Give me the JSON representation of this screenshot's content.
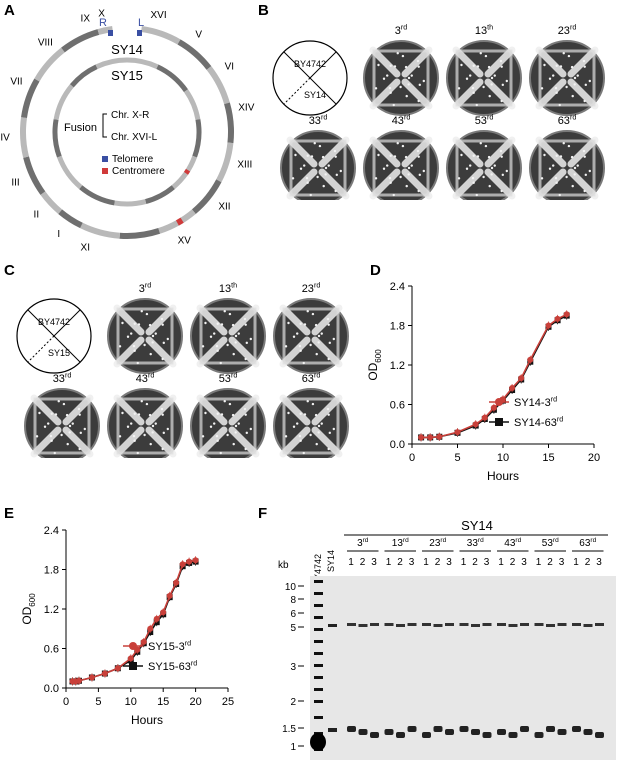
{
  "panels": {
    "A": "A",
    "B": "B",
    "C": "C",
    "D": "D",
    "E": "E",
    "F": "F"
  },
  "panel_a": {
    "outer_label": "SY14",
    "inner_label": "SY15",
    "chromosomes": [
      "X",
      "XVI",
      "V",
      "VI",
      "XIV",
      "XIII",
      "XII",
      "XV",
      "XI",
      "I",
      "II",
      "III",
      "IV",
      "VII",
      "VIII",
      "IX"
    ],
    "telomere_marks": [
      "R",
      "L"
    ],
    "fusion_label": "Fusion",
    "fusion_items": [
      "Chr. X-R",
      "Chr. XVI-L"
    ],
    "legend": [
      {
        "label": "Telomere",
        "color": "#3a4fa3"
      },
      {
        "label": "Centromere",
        "color": "#d03a3a"
      }
    ],
    "colors": {
      "ring_light": "#b9b9b9",
      "ring_dark": "#6f6f6f"
    }
  },
  "panel_b": {
    "strain_top": "BY4742",
    "strain_bottom": "SY14",
    "generations": [
      {
        "num": "3",
        "sup": "rd"
      },
      {
        "num": "13",
        "sup": "th"
      },
      {
        "num": "23",
        "sup": "rd"
      },
      {
        "num": "33",
        "sup": "rd"
      },
      {
        "num": "43",
        "sup": "rd"
      },
      {
        "num": "53",
        "sup": "rd"
      },
      {
        "num": "63",
        "sup": "rd"
      }
    ]
  },
  "panel_c": {
    "strain_top": "BY4742",
    "strain_bottom": "SY15",
    "generations": [
      {
        "num": "3",
        "sup": "rd"
      },
      {
        "num": "13",
        "sup": "th"
      },
      {
        "num": "23",
        "sup": "rd"
      },
      {
        "num": "33",
        "sup": "rd"
      },
      {
        "num": "43",
        "sup": "rd"
      },
      {
        "num": "53",
        "sup": "rd"
      },
      {
        "num": "63",
        "sup": "rd"
      }
    ]
  },
  "chart_data": [
    {
      "type": "line",
      "panel": "D",
      "xlabel": "Hours",
      "ylabel_main": "OD",
      "ylabel_sub": "600",
      "xlim": [
        0,
        20
      ],
      "ylim": [
        0,
        2.4
      ],
      "xticks": [
        "0",
        "5",
        "10",
        "15",
        "20"
      ],
      "yticks": [
        "0.0",
        "0.6",
        "1.2",
        "1.8",
        "2.4"
      ],
      "x": [
        1,
        2,
        3,
        5,
        7,
        8,
        9,
        10,
        11,
        12,
        13,
        15,
        16,
        17
      ],
      "series": [
        {
          "name": "SY14-3",
          "name_sup": "rd",
          "color": "#c9403a",
          "marker": "circle",
          "values": [
            0.1,
            0.1,
            0.11,
            0.18,
            0.3,
            0.4,
            0.55,
            0.68,
            0.85,
            1.0,
            1.28,
            1.8,
            1.9,
            1.97
          ]
        },
        {
          "name": "SY14-63",
          "name_sup": "rd",
          "color": "#111111",
          "marker": "square",
          "values": [
            0.1,
            0.1,
            0.11,
            0.17,
            0.28,
            0.38,
            0.52,
            0.66,
            0.82,
            0.98,
            1.25,
            1.78,
            1.88,
            1.95
          ]
        }
      ],
      "legend_position": "bottom-right"
    },
    {
      "type": "line",
      "panel": "E",
      "xlabel": "Hours",
      "ylabel_main": "OD",
      "ylabel_sub": "600",
      "xlim": [
        0,
        25
      ],
      "ylim": [
        0,
        2.4
      ],
      "xticks": [
        "0",
        "5",
        "10",
        "15",
        "20",
        "25"
      ],
      "yticks": [
        "0.0",
        "0.6",
        "1.2",
        "1.8",
        "2.4"
      ],
      "x": [
        1,
        1.5,
        2,
        4,
        6,
        8,
        10,
        11,
        12,
        13,
        14,
        15,
        16,
        17,
        18,
        19,
        20
      ],
      "series": [
        {
          "name": "SY15-3",
          "name_sup": "rd",
          "color": "#c9403a",
          "marker": "circle",
          "values": [
            0.1,
            0.1,
            0.11,
            0.16,
            0.22,
            0.3,
            0.45,
            0.58,
            0.7,
            0.9,
            1.05,
            1.15,
            1.4,
            1.6,
            1.88,
            1.92,
            1.94
          ]
        },
        {
          "name": "SY15-63",
          "name_sup": "rd",
          "color": "#111111",
          "marker": "square",
          "values": [
            0.1,
            0.1,
            0.11,
            0.16,
            0.22,
            0.3,
            0.42,
            0.55,
            0.68,
            0.85,
            1.0,
            1.12,
            1.38,
            1.58,
            1.85,
            1.9,
            1.92
          ]
        }
      ],
      "legend_position": "bottom-right"
    }
  ],
  "panel_f": {
    "title": "SY14",
    "kb_label": "kb",
    "markers": [
      "10",
      "8",
      "6",
      "5",
      "3",
      "2",
      "1.5",
      "1"
    ],
    "lane_labels": [
      "BY4742",
      "SY14"
    ],
    "groups": [
      {
        "num": "3",
        "sup": "rd"
      },
      {
        "num": "13",
        "sup": "rd"
      },
      {
        "num": "23",
        "sup": "rd"
      },
      {
        "num": "33",
        "sup": "rd"
      },
      {
        "num": "43",
        "sup": "rd"
      },
      {
        "num": "53",
        "sup": "rd"
      },
      {
        "num": "63",
        "sup": "rd"
      }
    ],
    "lane_nums": [
      "1",
      "2",
      "3"
    ]
  }
}
